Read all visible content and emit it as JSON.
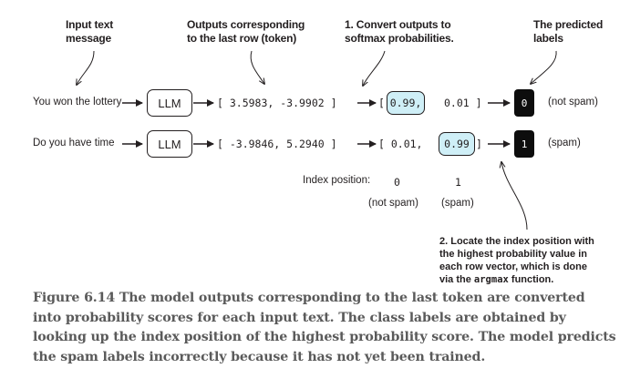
{
  "annotations": {
    "input_text": [
      "Input text",
      "message"
    ],
    "outputs_last_row": [
      "Outputs corresponding",
      "to the last row (token)"
    ],
    "convert_softmax": [
      "1. Convert outputs to",
      "softmax probabilities."
    ],
    "predicted_labels": [
      "The predicted",
      "labels"
    ]
  },
  "rows": [
    {
      "input": "You won the lottery",
      "model": "LLM",
      "logits": "[ 3.5983,   -3.9902 ]",
      "probs_open": "[",
      "probs_first": "0.99,",
      "probs_second": "0.01 ]",
      "highlighted": "first",
      "label": "0",
      "label_text": "(not spam)"
    },
    {
      "input": "Do you have time",
      "model": "LLM",
      "logits": "[ -3.9846,  5.2940 ]",
      "probs_first": "[ 0.01,",
      "probs_second": "0.99",
      "probs_close": "]",
      "highlighted": "second",
      "label": "1",
      "label_text": "(spam)"
    }
  ],
  "index_position": {
    "label": "Index position:",
    "positions": [
      "0",
      "1"
    ],
    "names": [
      "(not spam)",
      "(spam)"
    ]
  },
  "step2": {
    "line1": "2. Locate the index position with",
    "line2": "the highest probability value in",
    "line3": "each row vector, which is done",
    "line4_prefix": "via the ",
    "line4_code": "argmax",
    "line4_suffix": " function."
  },
  "caption": "Figure 6.14 The model outputs corresponding to the last token are converted into probability scores for each input text. The class labels are obtained by looking up the index position of the highest probability score. The model predicts the spam labels incorrectly because it has not yet been trained.",
  "colors": {
    "highlight": "#cfeff7",
    "label_box": "#0d0d0d",
    "caption": "#5a5a5a"
  }
}
